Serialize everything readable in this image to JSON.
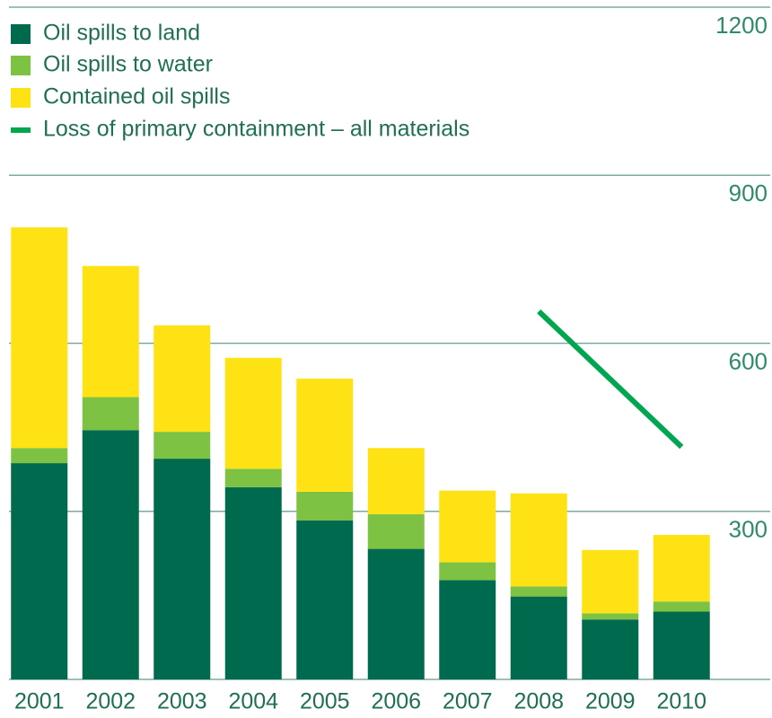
{
  "chart_data": {
    "type": "bar",
    "categories": [
      "2001",
      "2002",
      "2003",
      "2004",
      "2005",
      "2006",
      "2007",
      "2008",
      "2009",
      "2010"
    ],
    "series": [
      {
        "name": "Oil spills to land",
        "color": "#006a4e",
        "values": [
          386,
          445,
          394,
          343,
          284,
          233,
          177,
          148,
          107,
          121
        ]
      },
      {
        "name": "Oil spills to water",
        "color": "#7dc242",
        "values": [
          27,
          59,
          48,
          33,
          51,
          62,
          32,
          18,
          11,
          18
        ]
      },
      {
        "name": "Contained oil spills",
        "color": "#ffe214",
        "values": [
          394,
          234,
          190,
          198,
          202,
          118,
          128,
          166,
          113,
          119
        ]
      },
      {
        "name": "Loss of primary containment – all materials",
        "color": "#00a650",
        "type": "line",
        "values": [
          null,
          null,
          null,
          null,
          null,
          null,
          null,
          657,
          536,
          415
        ]
      }
    ],
    "ylim": [
      0,
      1200
    ],
    "yticks": [
      300,
      600,
      900,
      1200
    ],
    "grid": true
  }
}
